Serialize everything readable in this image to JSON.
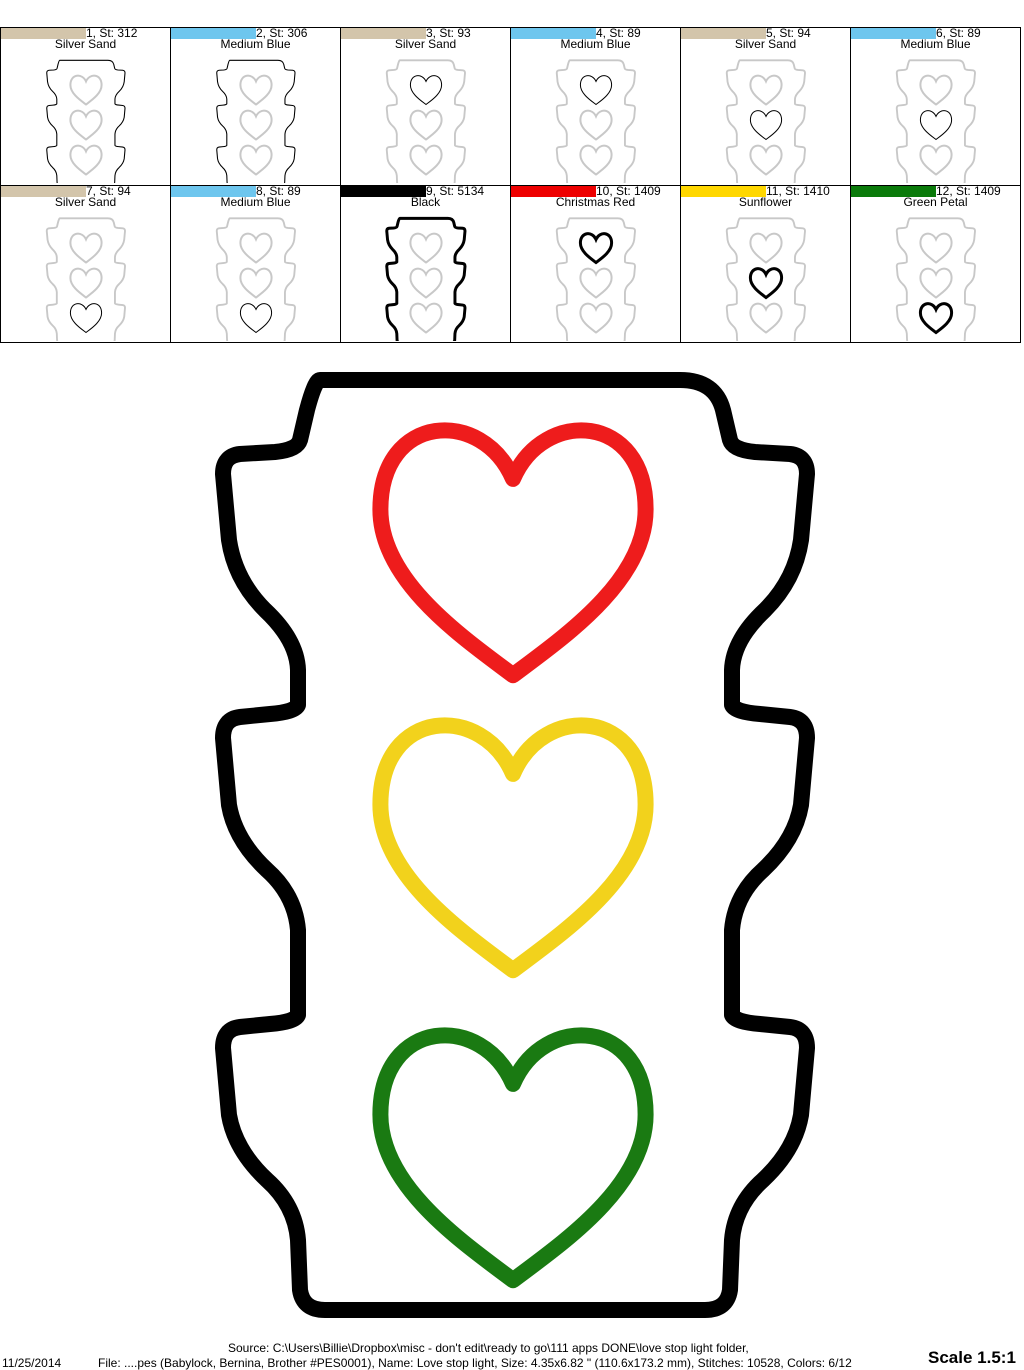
{
  "swatches": [
    {
      "label": "1, St: 312",
      "name": "Silver Sand",
      "color": "#d3c5ab",
      "highlight": "outline-shape"
    },
    {
      "label": "2, St: 306",
      "name": "Medium Blue",
      "color": "#6ec6ee",
      "highlight": "outline-shape"
    },
    {
      "label": "3, St: 93",
      "name": "Silver Sand",
      "color": "#d3c5ab",
      "highlight": "heart-top"
    },
    {
      "label": "4, St: 89",
      "name": "Medium Blue",
      "color": "#6ec6ee",
      "highlight": "heart-top"
    },
    {
      "label": "5, St: 94",
      "name": "Silver Sand",
      "color": "#d3c5ab",
      "highlight": "heart-middle"
    },
    {
      "label": "6, St: 89",
      "name": "Medium Blue",
      "color": "#6ec6ee",
      "highlight": "heart-middle"
    },
    {
      "label": "7, St: 94",
      "name": "Silver Sand",
      "color": "#d3c5ab",
      "highlight": "heart-bottom"
    },
    {
      "label": "8, St: 89",
      "name": "Medium Blue",
      "color": "#6ec6ee",
      "highlight": "heart-bottom"
    },
    {
      "label": "9, St: 5134",
      "name": "Black",
      "color": "#000000",
      "highlight": "satin-border"
    },
    {
      "label": "10, St: 1409",
      "name": "Christmas Red",
      "color": "#ee0000",
      "highlight": "satin-heart-top"
    },
    {
      "label": "11, St: 1410",
      "name": "Sunflower",
      "color": "#ffd700",
      "highlight": "satin-heart-middle"
    },
    {
      "label": "12, St: 1409",
      "name": "Green Petal",
      "color": "#0a7a0a",
      "highlight": "satin-heart-bottom"
    }
  ],
  "design": {
    "outline_color": "#000000",
    "heart_colors": [
      "#ee1c1c",
      "#f2d21c",
      "#1a7a12"
    ]
  },
  "footer": {
    "source": "Source: C:\\Users\\Billie\\Dropbox\\misc - don't edit\\ready to go\\111 apps DONE\\love stop light folder,",
    "date": "11/25/2014",
    "file": "File: ....pes (Babylock, Bernina, Brother #PES0001), Name: Love stop light, Size: 4.35x6.82 \" (110.6x173.2 mm), Stitches: 10528, Colors: 6/12",
    "scale": "Scale 1.5:1"
  }
}
